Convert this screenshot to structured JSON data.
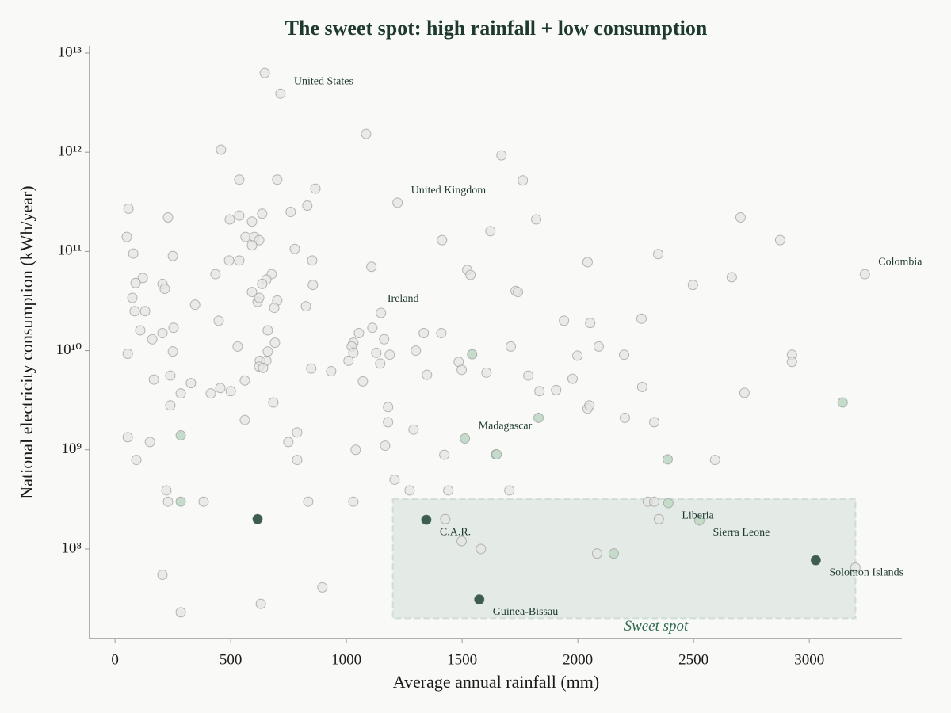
{
  "chart_data": {
    "type": "scatter",
    "title": "The sweet spot: high rainfall + low consumption",
    "x_label": "Average annual rainfall (mm)",
    "y_label": "National electricity consumption (kWh/year)",
    "xlim": [
      -110,
      3400
    ],
    "ylim": [
      12500000.0,
      11800000000000.0
    ],
    "y_scale": "log",
    "xticks": [
      0,
      500,
      1000,
      1500,
      2000,
      2500,
      3000
    ],
    "yticks": [
      {
        "value": 100000000.0,
        "label": "10⁸"
      },
      {
        "value": 1000000000.0,
        "label": "10⁹"
      },
      {
        "value": 10000000000.0,
        "label": "10¹⁰"
      },
      {
        "value": 100000000000.0,
        "label": "10¹¹"
      },
      {
        "value": 1000000000000.0,
        "label": "10¹²"
      },
      {
        "value": 10000000000000.0,
        "label": "10¹³"
      }
    ],
    "series": [
      {
        "color": "#e4e4e2",
        "x": [
          647,
          715,
          458,
          1085,
          1670,
          537,
          701,
          866,
          1762,
          58,
          229,
          496,
          537,
          592,
          636,
          759,
          831,
          1622,
          1820,
          2703,
          2874,
          51,
          564,
          602,
          623,
          592,
          777,
          1413,
          79,
          250,
          493,
          537,
          852,
          2042,
          2347,
          1108,
          1522,
          1536,
          120,
          434,
          677,
          654,
          636,
          89,
          205,
          215,
          855,
          2497,
          2665,
          592,
          616,
          701,
          623,
          75,
          1731,
          1741,
          346,
          825,
          688,
          85,
          130,
          1149,
          448,
          109,
          253,
          660,
          1112,
          1054,
          1334,
          1410,
          1940,
          2053,
          2275,
          205,
          161,
          1163,
          691,
          530,
          1030,
          1023,
          1710,
          2090,
          250,
          660,
          1030,
          1129,
          1187,
          1300,
          55,
          1998,
          2200,
          2925,
          2925,
          1009,
          1485,
          626,
          654,
          623,
          640,
          1146,
          848,
          934,
          1498,
          1605,
          1348,
          1786,
          239,
          1977,
          168,
          561,
          1071,
          328,
          455,
          2278,
          500,
          414,
          284,
          1834,
          1906,
          2720,
          684,
          239,
          1180,
          2042,
          2050,
          2203,
          561,
          1180,
          2330,
          1290,
          787,
          55,
          151,
          749,
          1167,
          1040,
          1423,
          92,
          787,
          2593,
          1208,
          1273,
          1440,
          1704,
          222,
          229,
          383,
          835,
          1030,
          2302,
          2330,
          1427,
          2350,
          1498,
          1581,
          2083,
          205,
          896,
          630,
          284,
          3199,
          1221,
          3240
        ],
        "values": [
          6300000000000.0,
          3900000000000.0,
          1060000000000.0,
          1530000000000.0,
          930000000000.0,
          530000000000.0,
          530000000000.0,
          430000000000.0,
          520000000000.0,
          270000000000.0,
          220000000000.0,
          210000000000.0,
          230000000000.0,
          200000000000.0,
          240000000000.0,
          250000000000.0,
          290000000000.0,
          160000000000.0,
          210000000000.0,
          220000000000.0,
          130000000000.0,
          140000000000.0,
          140000000000.0,
          140000000000.0,
          130000000000.0,
          115000000000.0,
          106000000000.0,
          130000000000.0,
          95000000000.0,
          90000000000.0,
          81000000000.0,
          81000000000.0,
          81000000000.0,
          78000000000.0,
          94000000000.0,
          70000000000.0,
          65000000000.0,
          58000000000.0,
          54000000000.0,
          59000000000.0,
          59000000000.0,
          52000000000.0,
          47000000000.0,
          48000000000.0,
          47000000000.0,
          42000000000.0,
          46000000000.0,
          46000000000.0,
          55000000000.0,
          39000000000.0,
          31000000000.0,
          32000000000.0,
          34000000000.0,
          34000000000.0,
          40000000000.0,
          39000000000.0,
          29000000000.0,
          28000000000.0,
          27000000000.0,
          25000000000.0,
          25000000000.0,
          24000000000.0,
          20000000000.0,
          16000000000.0,
          17000000000.0,
          16000000000.0,
          17000000000.0,
          15000000000.0,
          15000000000.0,
          15000000000.0,
          20000000000.0,
          19000000000.0,
          21000000000.0,
          15000000000.0,
          13000000000.0,
          13000000000.0,
          12000000000.0,
          11000000000.0,
          12000000000.0,
          11000000000.0,
          11000000000.0,
          11000000000.0,
          9800000000.0,
          9800000000.0,
          9500000000.0,
          9500000000.0,
          9100000000.0,
          10000000000.0,
          9300000000.0,
          8900000000.0,
          9100000000.0,
          9100000000.0,
          7700000000.0,
          7900000000.0,
          7700000000.0,
          7900000000.0,
          7900000000.0,
          6900000000.0,
          6700000000.0,
          7400000000.0,
          6600000000.0,
          6200000000.0,
          6400000000.0,
          6000000000.0,
          5700000000.0,
          5600000000.0,
          5600000000.0,
          5200000000.0,
          5100000000.0,
          5000000000.0,
          4900000000.0,
          4700000000.0,
          4200000000.0,
          4300000000.0,
          3900000000.0,
          3700000000.0,
          3700000000.0,
          3900000000.0,
          4000000000.0,
          3750000000.0,
          3000000000.0,
          2800000000.0,
          2700000000.0,
          2600000000.0,
          2800000000.0,
          2100000000.0,
          2000000000.0,
          1900000000.0,
          1900000000.0,
          1600000000.0,
          1500000000.0,
          1340000000.0,
          1200000000.0,
          1200000000.0,
          1100000000.0,
          1000000000.0,
          890000000.0,
          790000000.0,
          790000000.0,
          790000000.0,
          500000000.0,
          390000000.0,
          390000000.0,
          390000000.0,
          390000000.0,
          300000000.0,
          300000000.0,
          300000000.0,
          300000000.0,
          300000000.0,
          300000000.0,
          200000000.0,
          200000000.0,
          120000000.0,
          100000000.0,
          90000000.0,
          55000000.0,
          41000000.0,
          28000000.0,
          23000000.0,
          65000000.0,
          310000000000.0,
          59000000000.0
        ]
      },
      {
        "color": "#c5dccb",
        "x": [
          284,
          284,
          1543,
          1512,
          1646,
          1830,
          2388,
          2391,
          2525,
          2155,
          3144,
          1649
        ],
        "values": [
          1400000000.0,
          300000000.0,
          9200000000.0,
          1300000000.0,
          900000000.0,
          2100000000.0,
          800000000.0,
          290000000.0,
          194000000.0,
          90000000.0,
          3000000000.0,
          900000000.0
        ]
      },
      {
        "color": "#3e5d51",
        "x": [
          616,
          1345,
          1574,
          3028
        ],
        "values": [
          200000000.0,
          197000000.0,
          31000000.0,
          77000000.0
        ]
      }
    ],
    "annotations": [
      {
        "text": "United States",
        "x": 715,
        "y": 3900000000000.0
      },
      {
        "text": "United Kingdom",
        "x": 1221,
        "y": 310000000000.0
      },
      {
        "text": "Ireland",
        "x": 1119,
        "y": 25000000000.0
      },
      {
        "text": "Colombia",
        "x": 3240,
        "y": 59000000000.0
      },
      {
        "text": "Madagascar",
        "x": 1512,
        "y": 1300000000.0
      },
      {
        "text": "Liberia",
        "x": 2391,
        "y": 290000000.0
      },
      {
        "text": "Sierra Leone",
        "x": 2525,
        "y": 194000000.0
      },
      {
        "text": "C.A.R.",
        "x": 1345,
        "y": 197000000.0
      },
      {
        "text": "Solomon Islands",
        "x": 3028,
        "y": 77000000.0
      },
      {
        "text": "Guinea-Bissau",
        "x": 1574,
        "y": 31000000.0
      }
    ],
    "highlight_region": {
      "label": "Sweet spot",
      "x": [
        1200,
        3200
      ],
      "y": [
        20000000.0,
        320000000.0
      ],
      "color": "#2f6b4f"
    }
  }
}
